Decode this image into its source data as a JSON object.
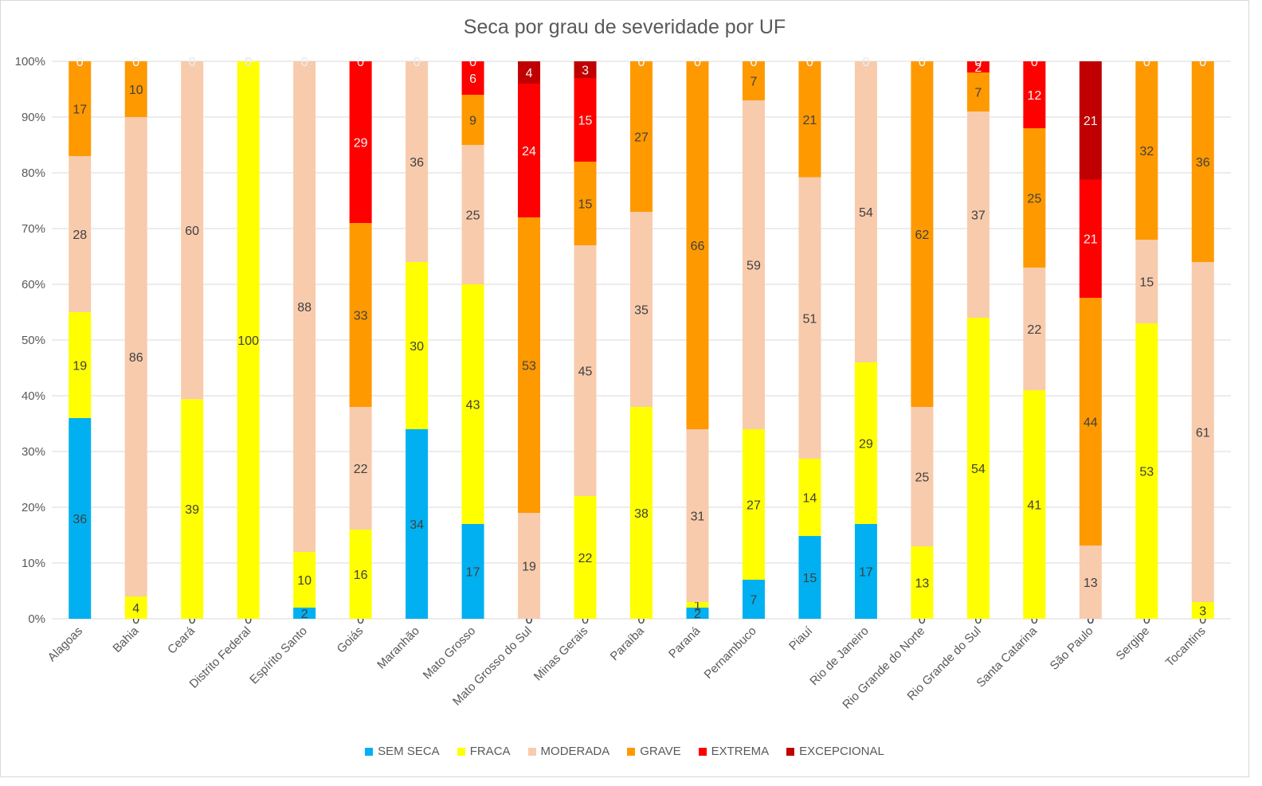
{
  "chart_data": {
    "type": "bar",
    "stacked": "percent",
    "title": "Seca por grau de severidade por UF",
    "xlabel": "",
    "ylabel": "",
    "ylim": [
      0,
      100
    ],
    "y_ticks": [
      "0%",
      "10%",
      "20%",
      "30%",
      "40%",
      "50%",
      "60%",
      "70%",
      "80%",
      "90%",
      "100%"
    ],
    "legend_position": "bottom",
    "categories": [
      "Alagoas",
      "Bahia",
      "Ceará",
      "Distrito Federal",
      "Espírito Santo",
      "Goiás",
      "Maranhão",
      "Mato Grosso",
      "Mato Grosso do Sul",
      "Minas Gerais",
      "Paraíba",
      "Paraná",
      "Pernambuco",
      "Piauí",
      "Rio de Janeiro",
      "Rio Grande do Norte",
      "Rio Grande do Sul",
      "Santa Catarina",
      "São Paulo",
      "Sergipe",
      "Tocantins"
    ],
    "series": [
      {
        "name": "SEM SECA",
        "color": "#00b0f0",
        "values": [
          36,
          0,
          0,
          0,
          2,
          0,
          34,
          17,
          0,
          0,
          0,
          2,
          7,
          15,
          17,
          0,
          0,
          0,
          0,
          0,
          0
        ]
      },
      {
        "name": "FRACA",
        "color": "#ffff00",
        "values": [
          19,
          4,
          39,
          100,
          10,
          16,
          30,
          43,
          0,
          22,
          38,
          1,
          27,
          14,
          29,
          13,
          54,
          41,
          0,
          53,
          3
        ]
      },
      {
        "name": "MODERADA",
        "color": "#f8cbad",
        "values": [
          28,
          86,
          60,
          0,
          88,
          22,
          36,
          25,
          19,
          45,
          35,
          31,
          59,
          51,
          54,
          25,
          37,
          22,
          13,
          15,
          61
        ]
      },
      {
        "name": "GRAVE",
        "color": "#ff9900",
        "values": [
          17,
          10,
          0,
          0,
          0,
          33,
          0,
          9,
          53,
          15,
          27,
          66,
          7,
          21,
          0,
          62,
          7,
          25,
          44,
          32,
          36
        ]
      },
      {
        "name": "EXTREMA",
        "color": "#ff0000",
        "values": [
          0,
          0,
          0,
          0,
          0,
          29,
          0,
          6,
          24,
          15,
          0,
          0,
          0,
          0,
          0,
          0,
          2,
          12,
          21,
          0,
          0
        ]
      },
      {
        "name": "EXCEPCIONAL",
        "color": "#c00000",
        "values": [
          0,
          0,
          0,
          0,
          0,
          0,
          0,
          0,
          4,
          3,
          0,
          0,
          0,
          0,
          0,
          0,
          0,
          0,
          21,
          0,
          0
        ]
      }
    ]
  }
}
